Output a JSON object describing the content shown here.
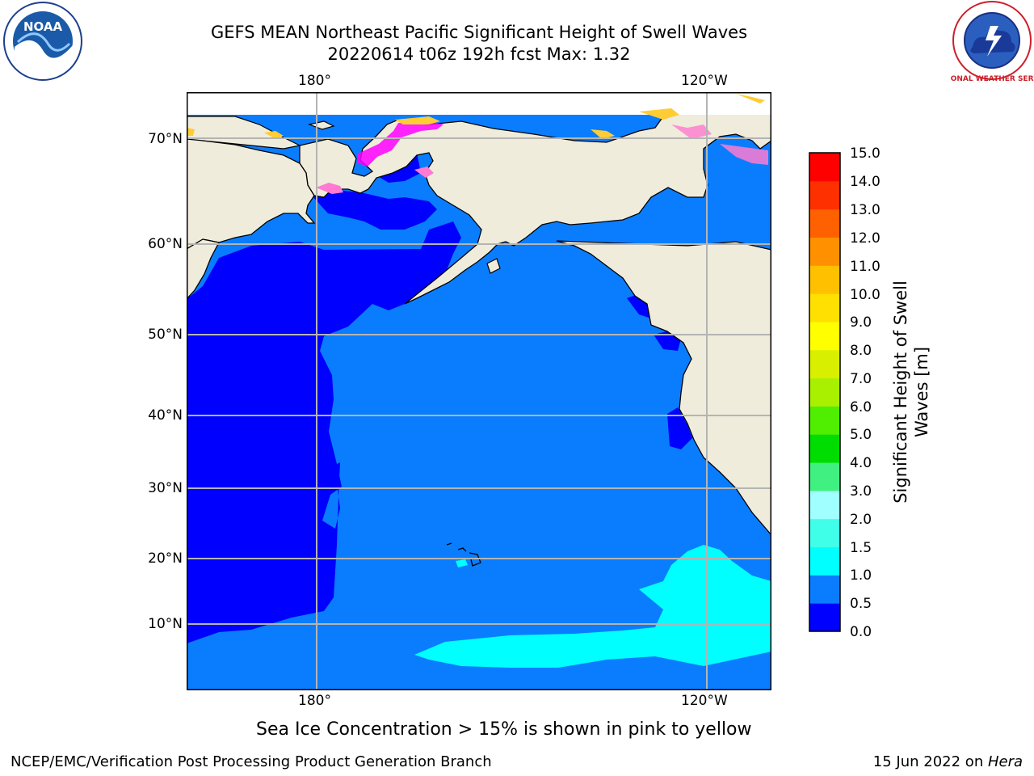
{
  "title": {
    "line1": "GEFS MEAN Northeast Pacific Significant Height of Swell Waves",
    "line2": "20220614 t06z 192h fcst   Max: 1.32"
  },
  "axes": {
    "top_x_ticks": [
      "180°",
      "120°W"
    ],
    "bottom_x_ticks": [
      "180°",
      "120°W"
    ],
    "y_ticks": [
      "70°N",
      "60°N",
      "50°N",
      "40°N",
      "30°N",
      "20°N",
      "10°N"
    ]
  },
  "colorbar": {
    "label": "Significant Height of Swell Waves [m]",
    "label_line1": "Significant Height of Swell",
    "label_line2": "Waves [m]",
    "ticks": [
      "15.0",
      "14.0",
      "13.0",
      "12.0",
      "11.0",
      "10.0",
      "9.0",
      "8.0",
      "7.0",
      "6.0",
      "5.0",
      "4.0",
      "3.0",
      "2.0",
      "1.5",
      "1.0",
      "0.5",
      "0.0"
    ],
    "colors_bottom_to_top": [
      "#0000ff",
      "#0a7dff",
      "#00ffff",
      "#40ffe8",
      "#a0ffff",
      "#40f080",
      "#00dd00",
      "#50ee00",
      "#a8f000",
      "#d8f000",
      "#ffff00",
      "#ffe000",
      "#ffc000",
      "#ff9000",
      "#ff6000",
      "#ff3000",
      "#ff0000"
    ]
  },
  "map_colors": {
    "land": "#efecdc",
    "swell_0_0_5": "#0000ff",
    "swell_0_5_1_0": "#0a7dff",
    "swell_1_0_1_5": "#00ffff",
    "sea_ice_low": "#ff00ff",
    "sea_ice_high": "#ffcc33"
  },
  "note": "Sea Ice Concentration > 15% is shown in pink to yellow",
  "footer": {
    "left": "NCEP/EMC/Verification Post Processing Product Generation Branch",
    "right_date": "15 Jun 2022 on ",
    "right_host": "Hera"
  },
  "logos": {
    "noaa": "NOAA",
    "nws": "NATIONAL WEATHER SERVICE"
  }
}
